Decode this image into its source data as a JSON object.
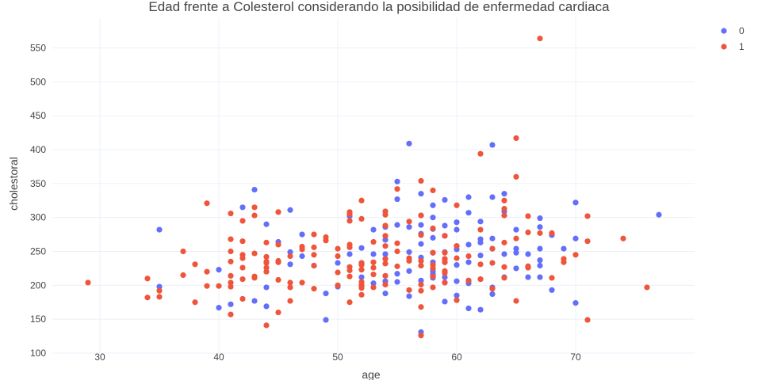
{
  "chart_data": {
    "type": "scatter",
    "title": "Edad frente a Colesterol considerando la posibilidad de enfermedad cardiaca",
    "xlabel": "age",
    "ylabel": "cholestoral",
    "xlim": [
      26,
      80
    ],
    "ylim": [
      100,
      595
    ],
    "xticks": [
      30,
      40,
      50,
      60,
      70
    ],
    "yticks": [
      100,
      150,
      200,
      250,
      300,
      350,
      400,
      450,
      500,
      550
    ],
    "grid": true,
    "legend_position": "top-right",
    "series": [
      {
        "name": "0",
        "color": "#636efa",
        "points": [
          [
            35,
            282
          ],
          [
            35,
            198
          ],
          [
            40,
            223
          ],
          [
            40,
            167
          ],
          [
            41,
            172
          ],
          [
            42,
            315
          ],
          [
            43,
            341
          ],
          [
            43,
            177
          ],
          [
            44,
            290
          ],
          [
            44,
            197
          ],
          [
            44,
            169
          ],
          [
            45,
            264
          ],
          [
            46,
            311
          ],
          [
            46,
            249
          ],
          [
            46,
            231
          ],
          [
            47,
            275
          ],
          [
            47,
            243
          ],
          [
            48,
            229
          ],
          [
            49,
            188
          ],
          [
            49,
            149
          ],
          [
            50,
            233
          ],
          [
            50,
            198
          ],
          [
            51,
            302
          ],
          [
            51,
            246
          ],
          [
            52,
            255
          ],
          [
            52,
            212
          ],
          [
            52,
            233
          ],
          [
            53,
            282
          ],
          [
            53,
            246
          ],
          [
            53,
            203
          ],
          [
            54,
            286
          ],
          [
            54,
            267
          ],
          [
            54,
            246
          ],
          [
            54,
            239
          ],
          [
            54,
            206
          ],
          [
            54,
            188
          ],
          [
            55,
            353
          ],
          [
            55,
            327
          ],
          [
            55,
            289
          ],
          [
            55,
            217
          ],
          [
            55,
            205
          ],
          [
            56,
            409
          ],
          [
            56,
            286
          ],
          [
            56,
            249
          ],
          [
            56,
            221
          ],
          [
            56,
            184
          ],
          [
            57,
            335
          ],
          [
            57,
            303
          ],
          [
            57,
            289
          ],
          [
            57,
            276
          ],
          [
            57,
            261
          ],
          [
            57,
            241
          ],
          [
            57,
            236
          ],
          [
            57,
            229
          ],
          [
            57,
            207
          ],
          [
            57,
            131
          ],
          [
            58,
            318
          ],
          [
            58,
            300
          ],
          [
            58,
            283
          ],
          [
            58,
            270
          ],
          [
            58,
            248
          ],
          [
            58,
            234
          ],
          [
            58,
            224
          ],
          [
            58,
            220
          ],
          [
            58,
            216
          ],
          [
            58,
            211
          ],
          [
            59,
            326
          ],
          [
            59,
            288
          ],
          [
            59,
            273
          ],
          [
            59,
            249
          ],
          [
            59,
            239
          ],
          [
            59,
            234
          ],
          [
            59,
            212
          ],
          [
            59,
            204
          ],
          [
            59,
            176
          ],
          [
            60,
            293
          ],
          [
            60,
            282
          ],
          [
            60,
            258
          ],
          [
            60,
            253
          ],
          [
            60,
            230
          ],
          [
            60,
            206
          ],
          [
            60,
            185
          ],
          [
            61,
            330
          ],
          [
            61,
            307
          ],
          [
            61,
            260
          ],
          [
            61,
            234
          ],
          [
            61,
            207
          ],
          [
            61,
            203
          ],
          [
            61,
            166
          ],
          [
            62,
            294
          ],
          [
            62,
            268
          ],
          [
            62,
            263
          ],
          [
            62,
            244
          ],
          [
            62,
            209
          ],
          [
            62,
            164
          ],
          [
            63,
            407
          ],
          [
            63,
            330
          ],
          [
            63,
            269
          ],
          [
            63,
            254
          ],
          [
            63,
            197
          ],
          [
            63,
            187
          ],
          [
            64,
            335
          ],
          [
            64,
            309
          ],
          [
            64,
            246
          ],
          [
            64,
            212
          ],
          [
            65,
            282
          ],
          [
            65,
            254
          ],
          [
            65,
            248
          ],
          [
            65,
            225
          ],
          [
            66,
            246
          ],
          [
            66,
            228
          ],
          [
            66,
            212
          ],
          [
            67,
            299
          ],
          [
            67,
            286
          ],
          [
            67,
            254
          ],
          [
            67,
            237
          ],
          [
            67,
            229
          ],
          [
            67,
            212
          ],
          [
            68,
            274
          ],
          [
            68,
            193
          ],
          [
            69,
            254
          ],
          [
            70,
            322
          ],
          [
            70,
            269
          ],
          [
            70,
            174
          ],
          [
            77,
            304
          ]
        ]
      },
      {
        "name": "1",
        "color": "#ef553b",
        "points": [
          [
            29,
            204
          ],
          [
            34,
            210
          ],
          [
            34,
            182
          ],
          [
            35,
            192
          ],
          [
            35,
            183
          ],
          [
            37,
            250
          ],
          [
            37,
            215
          ],
          [
            38,
            175
          ],
          [
            38,
            231
          ],
          [
            39,
            321
          ],
          [
            39,
            220
          ],
          [
            39,
            199
          ],
          [
            40,
            199
          ],
          [
            41,
            306
          ],
          [
            41,
            268
          ],
          [
            41,
            250
          ],
          [
            41,
            235
          ],
          [
            41,
            214
          ],
          [
            41,
            204
          ],
          [
            41,
            198
          ],
          [
            41,
            157
          ],
          [
            42,
            295
          ],
          [
            42,
            265
          ],
          [
            42,
            245
          ],
          [
            42,
            240
          ],
          [
            42,
            226
          ],
          [
            42,
            209
          ],
          [
            42,
            180
          ],
          [
            43,
            315
          ],
          [
            43,
            303
          ],
          [
            43,
            247
          ],
          [
            43,
            213
          ],
          [
            43,
            211
          ],
          [
            44,
            263
          ],
          [
            44,
            242
          ],
          [
            44,
            235
          ],
          [
            44,
            233
          ],
          [
            44,
            226
          ],
          [
            44,
            220
          ],
          [
            44,
            141
          ],
          [
            45,
            308
          ],
          [
            45,
            260
          ],
          [
            45,
            236
          ],
          [
            45,
            234
          ],
          [
            45,
            208
          ],
          [
            45,
            160
          ],
          [
            46,
            243
          ],
          [
            46,
            204
          ],
          [
            46,
            197
          ],
          [
            46,
            177
          ],
          [
            47,
            257
          ],
          [
            47,
            253
          ],
          [
            47,
            204
          ],
          [
            48,
            275
          ],
          [
            48,
            256
          ],
          [
            48,
            245
          ],
          [
            48,
            229
          ],
          [
            48,
            195
          ],
          [
            49,
            271
          ],
          [
            49,
            266
          ],
          [
            50,
            254
          ],
          [
            50,
            243
          ],
          [
            50,
            219
          ],
          [
            50,
            200
          ],
          [
            51,
            308
          ],
          [
            51,
            305
          ],
          [
            51,
            295
          ],
          [
            51,
            260
          ],
          [
            51,
            256
          ],
          [
            51,
            227
          ],
          [
            51,
            222
          ],
          [
            51,
            213
          ],
          [
            51,
            175
          ],
          [
            52,
            325
          ],
          [
            52,
            298
          ],
          [
            52,
            233
          ],
          [
            52,
            230
          ],
          [
            52,
            223
          ],
          [
            52,
            205
          ],
          [
            52,
            201
          ],
          [
            52,
            199
          ],
          [
            52,
            196
          ],
          [
            52,
            186
          ],
          [
            53,
            264
          ],
          [
            53,
            234
          ],
          [
            53,
            226
          ],
          [
            53,
            216
          ],
          [
            53,
            197
          ],
          [
            54,
            309
          ],
          [
            54,
            304
          ],
          [
            54,
            288
          ],
          [
            54,
            273
          ],
          [
            54,
            258
          ],
          [
            54,
            239
          ],
          [
            54,
            232
          ],
          [
            54,
            214
          ],
          [
            54,
            201
          ],
          [
            55,
            342
          ],
          [
            55,
            262
          ],
          [
            55,
            250
          ],
          [
            55,
            228
          ],
          [
            56,
            294
          ],
          [
            56,
            240
          ],
          [
            56,
            236
          ],
          [
            56,
            193
          ],
          [
            57,
            354
          ],
          [
            57,
            303
          ],
          [
            57,
            274
          ],
          [
            57,
            236
          ],
          [
            57,
            229
          ],
          [
            57,
            201
          ],
          [
            57,
            192
          ],
          [
            57,
            168
          ],
          [
            57,
            126
          ],
          [
            58,
            340
          ],
          [
            58,
            284
          ],
          [
            58,
            248
          ],
          [
            58,
            230
          ],
          [
            58,
            225
          ],
          [
            58,
            213
          ],
          [
            58,
            197
          ],
          [
            59,
            273
          ],
          [
            59,
            248
          ],
          [
            59,
            239
          ],
          [
            59,
            234
          ],
          [
            59,
            221
          ],
          [
            59,
            218
          ],
          [
            59,
            204
          ],
          [
            60,
            318
          ],
          [
            60,
            258
          ],
          [
            60,
            240
          ],
          [
            60,
            178
          ],
          [
            61,
            243
          ],
          [
            61,
            207
          ],
          [
            62,
            394
          ],
          [
            62,
            282
          ],
          [
            62,
            231
          ],
          [
            62,
            209
          ],
          [
            63,
            254
          ],
          [
            63,
            233
          ],
          [
            63,
            195
          ],
          [
            64,
            325
          ],
          [
            64,
            313
          ],
          [
            64,
            303
          ],
          [
            64,
            263
          ],
          [
            64,
            227
          ],
          [
            64,
            211
          ],
          [
            65,
            417
          ],
          [
            65,
            360
          ],
          [
            65,
            269
          ],
          [
            65,
            177
          ],
          [
            66,
            302
          ],
          [
            66,
            278
          ],
          [
            66,
            228
          ],
          [
            66,
            226
          ],
          [
            67,
            277
          ],
          [
            67,
            564
          ],
          [
            68,
            277
          ],
          [
            68,
            211
          ],
          [
            69,
            239
          ],
          [
            69,
            234
          ],
          [
            70,
            245
          ],
          [
            71,
            302
          ],
          [
            71,
            265
          ],
          [
            71,
            149
          ],
          [
            74,
            269
          ],
          [
            76,
            197
          ]
        ]
      }
    ]
  }
}
